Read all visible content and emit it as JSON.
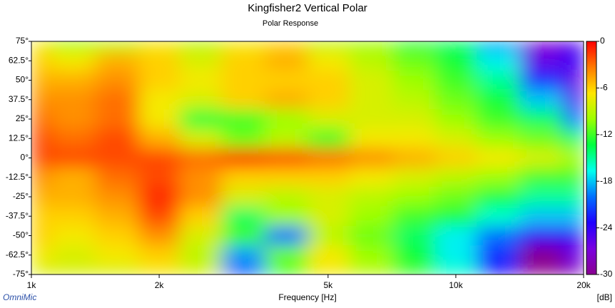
{
  "chart_data": {
    "type": "heatmap",
    "title": "Kingfisher2 Vertical Polar",
    "subtitle": "Polar Response",
    "x_label": "Frequency [Hz]",
    "colorbar_label": "[dB]",
    "watermark": "OmniMic",
    "x_scale": "log",
    "x": [
      1000,
      1250,
      1600,
      2000,
      2500,
      3150,
      4000,
      5000,
      6300,
      8000,
      10000,
      12500,
      16000,
      20000
    ],
    "y": [
      75,
      62.5,
      50,
      37.5,
      25,
      12.5,
      0,
      -12.5,
      -25,
      -37.5,
      -50,
      -62.5,
      -75
    ],
    "values": [
      [
        -7,
        -10,
        -9,
        -7,
        -9,
        -7,
        -6,
        -9,
        -10,
        -13,
        -14,
        -19,
        -27,
        -25
      ],
      [
        -6,
        -7,
        -5,
        -6,
        -8,
        -6,
        -5,
        -7,
        -9,
        -11,
        -13,
        -17,
        -26,
        -24
      ],
      [
        -5,
        -5,
        -4,
        -6,
        -7,
        -6,
        -6,
        -6,
        -8,
        -10,
        -12,
        -15,
        -22,
        -26
      ],
      [
        -4,
        -4,
        -3,
        -7,
        -8,
        -6,
        -5,
        -6,
        -8,
        -9,
        -11,
        -13,
        -18,
        -25
      ],
      [
        -3,
        -4,
        -3,
        -7,
        -13,
        -12,
        -10,
        -8,
        -8,
        -8,
        -10,
        -12,
        -14,
        -20
      ],
      [
        -2,
        -3,
        -2,
        -5,
        -8,
        -11,
        -9,
        -12,
        -7,
        -7,
        -8,
        -10,
        -11,
        -14
      ],
      [
        -2,
        -2,
        -2,
        -2,
        -3,
        -1,
        -2,
        -3,
        -4,
        -5,
        -6,
        -7,
        -8,
        -10
      ],
      [
        -4,
        -5,
        -3,
        -2,
        -4,
        -6,
        -6,
        -6,
        -7,
        -8,
        -9,
        -10,
        -12,
        -12
      ],
      [
        -5,
        -5,
        -4,
        -1,
        -4,
        -8,
        -9,
        -8,
        -9,
        -10,
        -11,
        -13,
        -15,
        -15
      ],
      [
        -6,
        -6,
        -5,
        -2,
        -6,
        -14,
        -10,
        -8,
        -10,
        -12,
        -13,
        -16,
        -18,
        -18
      ],
      [
        -6,
        -7,
        -6,
        -4,
        -8,
        -12,
        -20,
        -9,
        -11,
        -14,
        -17,
        -20,
        -24,
        -24
      ],
      [
        -7,
        -8,
        -7,
        -6,
        -9,
        -19,
        -11,
        -7,
        -10,
        -13,
        -17,
        -22,
        -30,
        -26
      ],
      [
        -8,
        -8,
        -8,
        -7,
        -8,
        -21,
        -12,
        -7,
        -9,
        -12,
        -16,
        -23,
        -30,
        -28
      ]
    ],
    "xlim": [
      1000,
      20000
    ],
    "ylim": [
      -75,
      75
    ],
    "xticks": [
      {
        "value": 1000,
        "label": "1k"
      },
      {
        "value": 2000,
        "label": "2k"
      },
      {
        "value": 5000,
        "label": "5k"
      },
      {
        "value": 10000,
        "label": "10k"
      },
      {
        "value": 20000,
        "label": "20k"
      }
    ],
    "yticks": [
      {
        "value": 75,
        "label": "75°"
      },
      {
        "value": 62.5,
        "label": "62.5°"
      },
      {
        "value": 50,
        "label": "50°"
      },
      {
        "value": 37.5,
        "label": "37.5°"
      },
      {
        "value": 25,
        "label": "25°"
      },
      {
        "value": 12.5,
        "label": "12.5°"
      },
      {
        "value": 0,
        "label": "0°"
      },
      {
        "value": -12.5,
        "label": "-12.5°"
      },
      {
        "value": -25,
        "label": "-25°"
      },
      {
        "value": -37.5,
        "label": "-37.5°"
      },
      {
        "value": -50,
        "label": "-50°"
      },
      {
        "value": -62.5,
        "label": "-62.5°"
      },
      {
        "value": -75,
        "label": "-75°"
      }
    ],
    "zlim": [
      -30,
      0
    ],
    "zticks": [
      0,
      -6,
      -12,
      -18,
      -24,
      -30
    ],
    "colormap": [
      "#ff0000",
      "#ff7a00",
      "#ffe600",
      "#9cff00",
      "#00ff40",
      "#00ffee",
      "#0070ff",
      "#2000ff",
      "#7a00e0",
      "#8a0090"
    ]
  }
}
